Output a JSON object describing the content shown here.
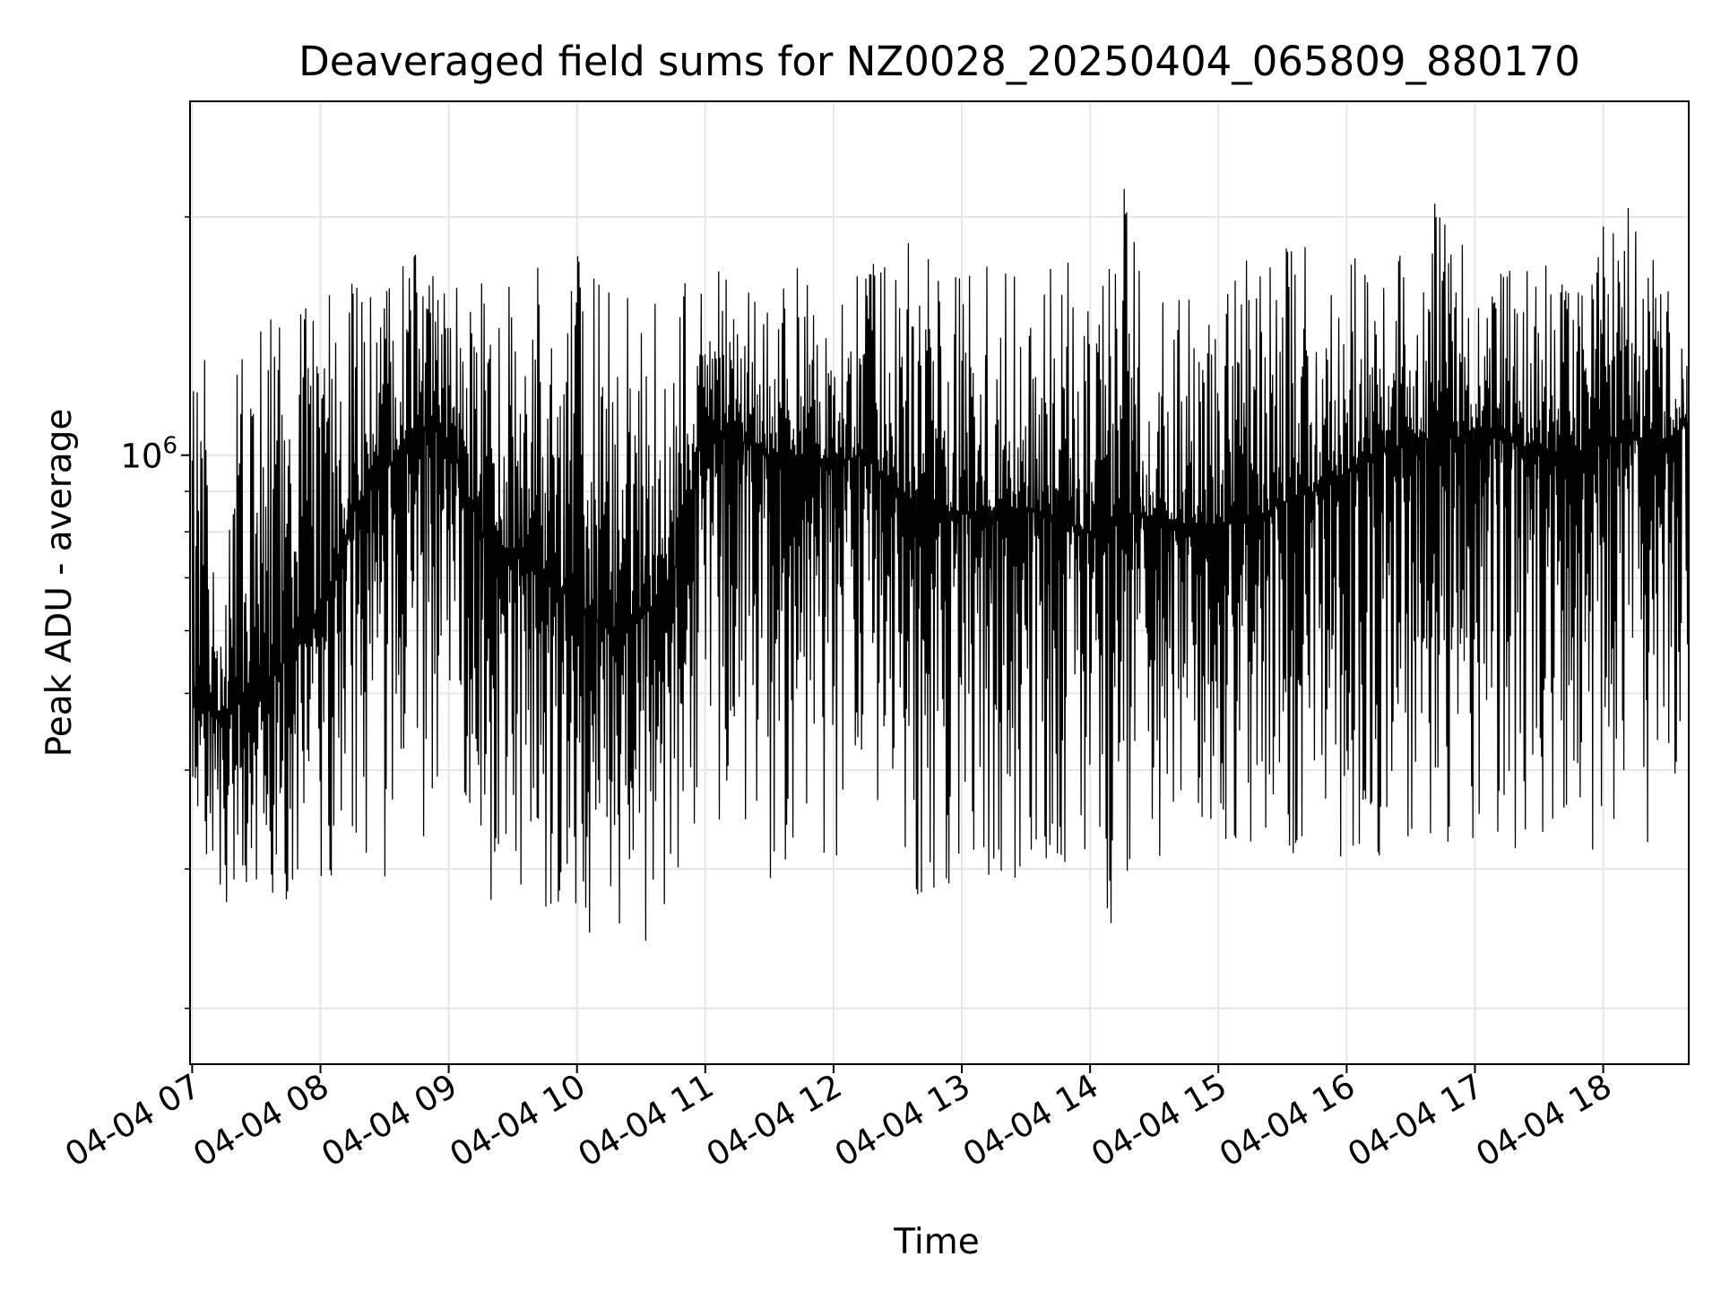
{
  "chart_data": {
    "type": "line",
    "title": "Deaveraged field sums for NZ0028_20250404_065809_880170",
    "xlabel": "Time",
    "ylabel": "Peak ADU - average",
    "yscale": "log",
    "grid": true,
    "line_color": "#000000",
    "grid_color": "#e6e6e6",
    "xlim": [
      "2025-04-04T06:59",
      "2025-04-04T18:40"
    ],
    "ylim": [
      170000,
      2800000
    ],
    "x_ticks": [
      {
        "t": "2025-04-04T07:00",
        "label": "04-04 07"
      },
      {
        "t": "2025-04-04T08:00",
        "label": "04-04 08"
      },
      {
        "t": "2025-04-04T09:00",
        "label": "04-04 09"
      },
      {
        "t": "2025-04-04T10:00",
        "label": "04-04 10"
      },
      {
        "t": "2025-04-04T11:00",
        "label": "04-04 11"
      },
      {
        "t": "2025-04-04T12:00",
        "label": "04-04 12"
      },
      {
        "t": "2025-04-04T13:00",
        "label": "04-04 13"
      },
      {
        "t": "2025-04-04T14:00",
        "label": "04-04 14"
      },
      {
        "t": "2025-04-04T15:00",
        "label": "04-04 15"
      },
      {
        "t": "2025-04-04T16:00",
        "label": "04-04 16"
      },
      {
        "t": "2025-04-04T17:00",
        "label": "04-04 17"
      },
      {
        "t": "2025-04-04T18:00",
        "label": "04-04 18"
      }
    ],
    "y_major_ticks": [
      {
        "value": 1000000,
        "base": "10",
        "exp": "6"
      }
    ],
    "y_minor_ticks": [
      200000,
      300000,
      400000,
      500000,
      600000,
      700000,
      800000,
      900000,
      2000000
    ],
    "series": [
      {
        "x": [
          "2025-04-04T07:00",
          "2025-04-04T07:15",
          "2025-04-04T07:30",
          "2025-04-04T07:45",
          "2025-04-04T08:00",
          "2025-04-04T08:15",
          "2025-04-04T08:30",
          "2025-04-04T08:45",
          "2025-04-04T09:00",
          "2025-04-04T09:15",
          "2025-04-04T09:30",
          "2025-04-04T09:45",
          "2025-04-04T10:00",
          "2025-04-04T10:15",
          "2025-04-04T10:30",
          "2025-04-04T10:45",
          "2025-04-04T11:00",
          "2025-04-04T11:15",
          "2025-04-04T11:30",
          "2025-04-04T11:45",
          "2025-04-04T12:00",
          "2025-04-04T12:15",
          "2025-04-04T12:30",
          "2025-04-04T12:45",
          "2025-04-04T13:00",
          "2025-04-04T13:15",
          "2025-04-04T13:30",
          "2025-04-04T13:45",
          "2025-04-04T14:00",
          "2025-04-04T14:15",
          "2025-04-04T14:30",
          "2025-04-04T14:45",
          "2025-04-04T15:00",
          "2025-04-04T15:15",
          "2025-04-04T15:30",
          "2025-04-04T15:45",
          "2025-04-04T16:00",
          "2025-04-04T16:15",
          "2025-04-04T16:30",
          "2025-04-04T16:45",
          "2025-04-04T17:00",
          "2025-04-04T17:15",
          "2025-04-04T17:30",
          "2025-04-04T17:45",
          "2025-04-04T18:00",
          "2025-04-04T18:15",
          "2025-04-04T18:30",
          "2025-04-04T18:40"
        ],
        "max": [
          1450000,
          1150000,
          1650000,
          1600000,
          1650000,
          1700000,
          1650000,
          1800000,
          1650000,
          1700000,
          1650000,
          1850000,
          1900000,
          1700000,
          1650000,
          1600000,
          1750000,
          1650000,
          1600000,
          1750000,
          1550000,
          1750000,
          1950000,
          1850000,
          1700000,
          1750000,
          1650000,
          1800000,
          1700000,
          2250000,
          1650000,
          1650000,
          1550000,
          1800000,
          1850000,
          1850000,
          1800000,
          1700000,
          1850000,
          2200000,
          1750000,
          1800000,
          1750000,
          1700000,
          2000000,
          2100000,
          1700000,
          1600000
        ],
        "min": [
          340000,
          270000,
          280000,
          270000,
          290000,
          300000,
          290000,
          320000,
          360000,
          250000,
          270000,
          260000,
          250000,
          235000,
          240000,
          260000,
          360000,
          320000,
          290000,
          280000,
          300000,
          330000,
          300000,
          250000,
          260000,
          270000,
          300000,
          310000,
          270000,
          230000,
          310000,
          300000,
          300000,
          310000,
          300000,
          320000,
          300000,
          310000,
          330000,
          300000,
          310000,
          320000,
          300000,
          310000,
          290000,
          300000,
          300000,
          380000
        ],
        "median": [
          480000,
          470000,
          500000,
          560000,
          620000,
          850000,
          950000,
          1100000,
          1050000,
          800000,
          750000,
          700000,
          650000,
          600000,
          620000,
          700000,
          1100000,
          1050000,
          1000000,
          1000000,
          980000,
          1000000,
          900000,
          850000,
          850000,
          850000,
          860000,
          830000,
          800000,
          850000,
          830000,
          820000,
          820000,
          830000,
          870000,
          900000,
          950000,
          1000000,
          1050000,
          1050000,
          1050000,
          1050000,
          1000000,
          1000000,
          1050000,
          1050000,
          1050000,
          1100000
        ]
      }
    ]
  }
}
